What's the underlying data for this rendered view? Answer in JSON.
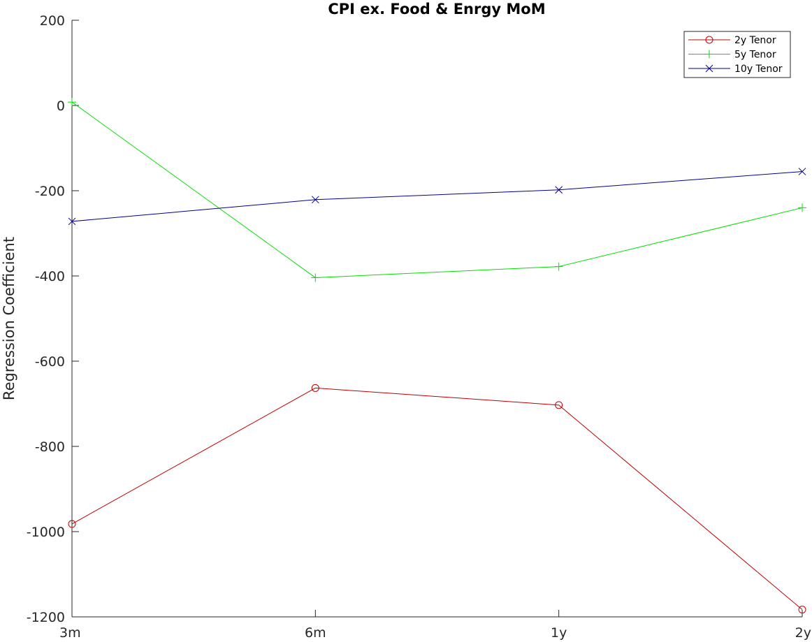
{
  "chart_data": {
    "type": "line",
    "title": "CPI ex. Food & Enrgy MoM",
    "xlabel": "",
    "ylabel": "Regression Coefficient",
    "categories": [
      "3m",
      "6m",
      "1y",
      "2y"
    ],
    "ylim": [
      -1200,
      200
    ],
    "yticks": [
      200,
      0,
      -200,
      -400,
      -600,
      -800,
      -1000,
      -1200
    ],
    "grid": false,
    "legend_position": "top-right",
    "series": [
      {
        "name": "2y Tenor",
        "color": "#c00000",
        "marker": "circle",
        "values": [
          -982,
          -663,
          -703,
          -1183
        ]
      },
      {
        "name": "5y Tenor",
        "color": "#00e000",
        "marker": "plus",
        "values": [
          8,
          -404,
          -378,
          -240
        ]
      },
      {
        "name": "10y Tenor",
        "color": "#00008b",
        "marker": "x",
        "values": [
          -272,
          -221,
          -198,
          -155
        ]
      }
    ]
  }
}
